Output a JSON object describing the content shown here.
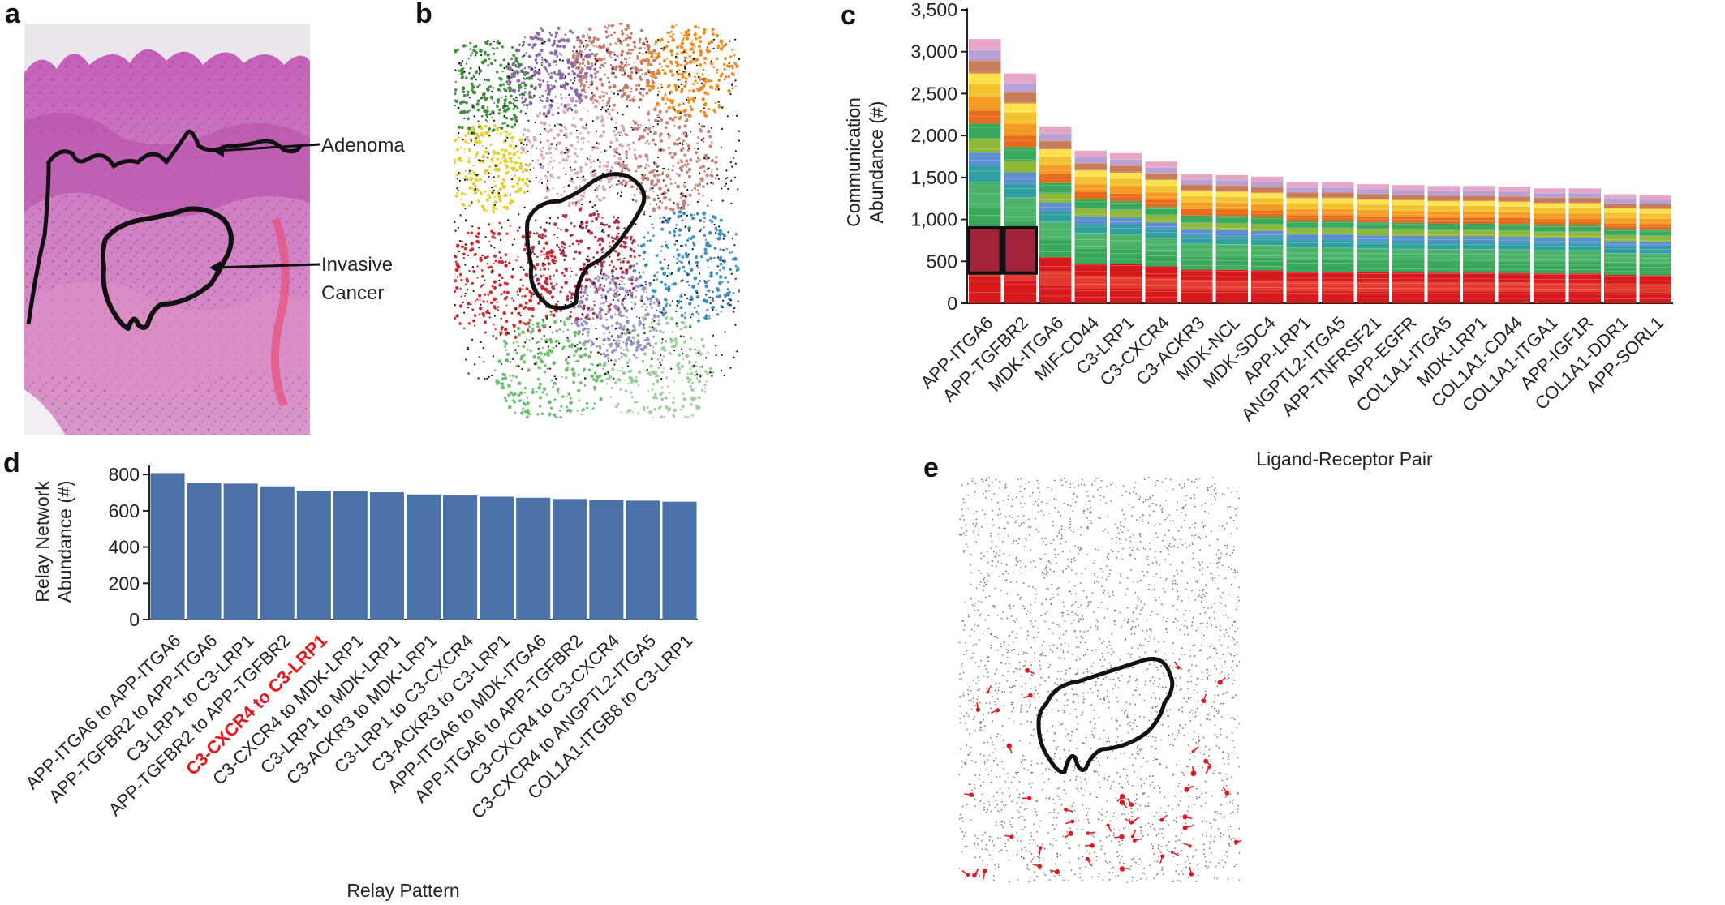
{
  "panels": {
    "a": {
      "letter": "a",
      "labels": {
        "adenoma": "Adenoma",
        "invasive_line1": "Invasive",
        "invasive_line2": "Cancer"
      }
    },
    "b": {
      "letter": "b"
    },
    "c": {
      "letter": "c"
    },
    "d": {
      "letter": "d"
    },
    "e": {
      "letter": "e"
    }
  },
  "colors": {
    "he_pink": "#d77fc4",
    "he_deep": "#b048a8",
    "bar_blue": "#4a72a8",
    "highlight_red": "#e8141c",
    "stack_palette": [
      "#d7191c",
      "#e53a2f",
      "#3aa85a",
      "#4cb36b",
      "#2f9fa0",
      "#5b8fd0",
      "#8fb83a",
      "#f2c12e",
      "#fde24a",
      "#f59a23",
      "#e86a1c",
      "#c87c5a",
      "#b8a0d6",
      "#e7a5c8"
    ]
  },
  "chart_data": [
    {
      "id": "c",
      "type": "bar",
      "stacked": true,
      "title": "",
      "xlabel": "Ligand-Receptor Pair",
      "ylabel": [
        "Communication",
        "Abundance (#)"
      ],
      "ylim": [
        0,
        3500
      ],
      "yticks": [
        "0",
        "500",
        "1,000",
        "1,500",
        "2,000",
        "2,500",
        "3,000",
        "3,500"
      ],
      "categories": [
        "APP-ITGA6",
        "APP-TGFBR2",
        "MDK-ITGA6",
        "MIF-CD44",
        "C3-LRP1",
        "C3-CXCR4",
        "C3-ACKR3",
        "MDK-NCL",
        "MDK-SDC4",
        "APP-LRP1",
        "ANGPTL2-ITGA5",
        "APP-TNFRSF21",
        "APP-EGFR",
        "COL1A1-ITGA5",
        "MDK-LRP1",
        "COL1A1-CD44",
        "COL1A1-ITGA1",
        "APP-IGF1R",
        "COL1A1-DDR1",
        "APP-SORL1"
      ],
      "values": [
        3150,
        2740,
        2110,
        1820,
        1790,
        1690,
        1540,
        1530,
        1510,
        1440,
        1440,
        1420,
        1410,
        1400,
        1400,
        1390,
        1370,
        1370,
        1300,
        1290
      ],
      "highlighted_segment": {
        "categories": [
          "APP-ITGA6",
          "APP-TGFBR2"
        ],
        "range": [
          360,
          900
        ]
      }
    },
    {
      "id": "d",
      "type": "bar",
      "title": "",
      "xlabel": "Relay Pattern",
      "ylabel": [
        "Relay Network",
        "Abundance (#)"
      ],
      "ylim": [
        0,
        850
      ],
      "yticks": [
        "0",
        "200",
        "400",
        "600",
        "800"
      ],
      "categories": [
        "APP-ITGA6 to APP-ITGA6",
        "APP-TGFBR2 to APP-ITGA6",
        "C3-LRP1 to C3-LRP1",
        "APP-TGFBR2 to APP-TGFBR2",
        "C3-CXCR4 to C3-LRP1",
        "C3-CXCR4 to MDK-LRP1",
        "C3-LRP1 to MDK-LRP1",
        "C3-ACKR3 to MDK-LRP1",
        "C3-LRP1 to C3-CXCR4",
        "C3-ACKR3 to C3-LRP1",
        "APP-ITGA6 to MDK-ITGA6",
        "APP-ITGA6 to APP-TGFBR2",
        "C3-CXCR4 to C3-CXCR4",
        "C3-CXCR4 to ANGPTL2-ITGA5",
        "COL1A1-ITGB8 to C3-LRP1"
      ],
      "values": [
        808,
        752,
        750,
        735,
        710,
        708,
        702,
        690,
        685,
        678,
        672,
        665,
        660,
        656,
        650
      ],
      "highlight_index": 4
    }
  ]
}
